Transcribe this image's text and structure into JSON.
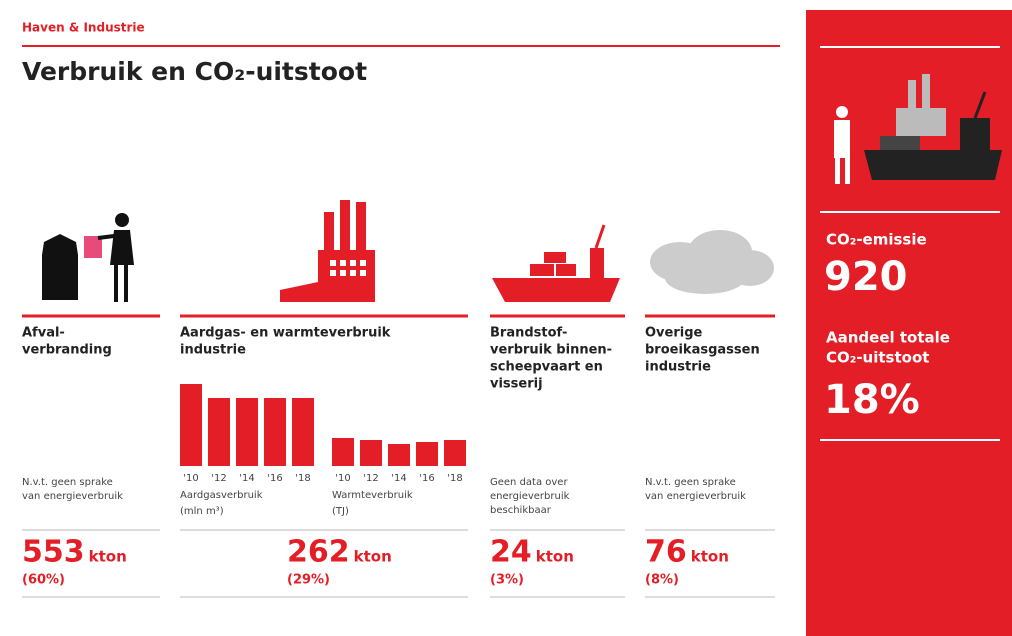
{
  "header": {
    "section": "Haven & Industrie",
    "title": "Verbruik en CO₂-uitstoot"
  },
  "columns": [
    {
      "heading": [
        "Afval-",
        "verbranding"
      ],
      "note": [
        "N.v.t. geen sprake",
        "van energieverbruik"
      ],
      "value": "553",
      "unit": "kton",
      "share": "(60%)"
    },
    {
      "heading": [
        "Aardgas- en warmteverbruik",
        "industrie"
      ],
      "value": "262",
      "unit": "kton",
      "share": "(29%)"
    },
    {
      "heading": [
        "Brandstof-",
        "verbruik binnen-",
        "scheepvaart en",
        "visserij"
      ],
      "note": [
        "Geen data over",
        "energieverbruik",
        "beschikbaar"
      ],
      "value": "24",
      "unit": "kton",
      "share": "(3%)"
    },
    {
      "heading": [
        "Overige",
        "broeikasgassen",
        "industrie"
      ],
      "note": [
        "N.v.t. geen sprake",
        "van energieverbruik"
      ],
      "value": "76",
      "unit": "kton",
      "share": "(8%)"
    }
  ],
  "chart_data": [
    {
      "type": "bar",
      "categories": [
        "'10",
        "'12",
        "'14",
        "'16",
        "'18"
      ],
      "values": [
        82,
        68,
        68,
        68,
        68
      ],
      "color": "#e41e26",
      "ylim": [
        0,
        100
      ],
      "label": [
        "Aardgasverbruik",
        "(mln m³)"
      ]
    },
    {
      "type": "bar",
      "categories": [
        "'10",
        "'12",
        "'14",
        "'16",
        "'18"
      ],
      "values": [
        28,
        26,
        22,
        24,
        26
      ],
      "color": "#e41e26",
      "ylim": [
        0,
        100
      ],
      "label": [
        "Warmteverbruik",
        "(TJ)"
      ]
    }
  ],
  "sidebar": {
    "emission_label": "CO₂-emissie",
    "emission_value": "920",
    "share_label": [
      "Aandeel totale",
      "CO₂-uitstoot"
    ],
    "share_value": "18%"
  }
}
